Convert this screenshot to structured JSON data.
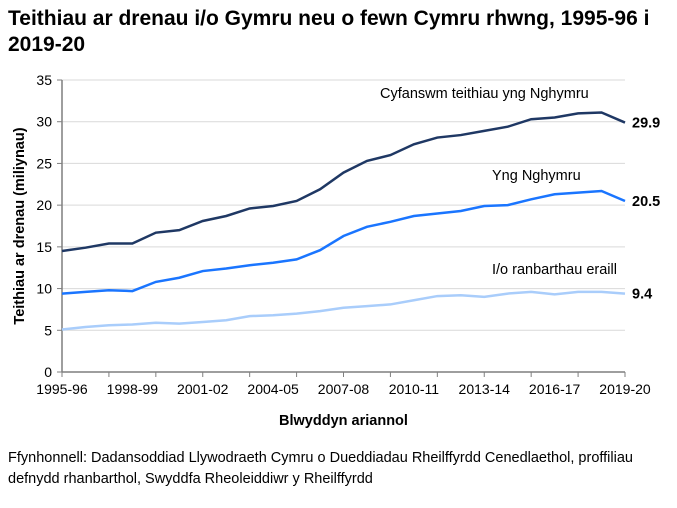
{
  "chart_data": {
    "type": "line",
    "title": "Teithiau ar drenau i/o Gymru neu o fewn Cymru rhwng, 1995-96 i 2019-20",
    "xlabel": "Blwyddyn ariannol",
    "ylabel": "Teithiau ar drenau (miliynau)",
    "ylim": [
      0,
      35
    ],
    "yticks": [
      "0",
      "5",
      "10",
      "15",
      "20",
      "25",
      "30",
      "35"
    ],
    "grid": true,
    "categories": [
      "1995-96",
      "1996-97",
      "1997-98",
      "1998-99",
      "1999-00",
      "2000-01",
      "2001-02",
      "2002-03",
      "2003-04",
      "2004-05",
      "2005-06",
      "2006-07",
      "2007-08",
      "2008-09",
      "2009-10",
      "2010-11",
      "2011-12",
      "2012-13",
      "2013-14",
      "2014-15",
      "2015-16",
      "2016-17",
      "2017-18",
      "2018-19",
      "2019-20"
    ],
    "xtick_labels": [
      "1995-96",
      "1998-99",
      "2001-02",
      "2004-05",
      "2007-08",
      "2010-11",
      "2013-14",
      "2016-17",
      "2019-20"
    ],
    "series": [
      {
        "name": "Cyfanswm teithiau yng Nghymru",
        "color": "#1f3864",
        "end_label": "29.9",
        "values": [
          14.5,
          14.9,
          15.4,
          15.4,
          16.7,
          17.0,
          18.1,
          18.7,
          19.6,
          19.9,
          20.5,
          21.9,
          23.9,
          25.3,
          26.0,
          27.3,
          28.1,
          28.4,
          28.9,
          29.4,
          30.3,
          30.5,
          31.0,
          31.1,
          29.9
        ]
      },
      {
        "name": "Yng Nghymru",
        "color": "#1a75ff",
        "end_label": "20.5",
        "values": [
          9.4,
          9.6,
          9.8,
          9.7,
          10.8,
          11.3,
          12.1,
          12.4,
          12.8,
          13.1,
          13.5,
          14.6,
          16.3,
          17.4,
          18.0,
          18.7,
          19.0,
          19.3,
          19.9,
          20.0,
          20.7,
          21.3,
          21.5,
          21.7,
          20.5
        ]
      },
      {
        "name": "I/o ranbarthau eraill",
        "color": "#a9cdfb",
        "end_label": "9.4",
        "values": [
          5.1,
          5.4,
          5.6,
          5.7,
          5.9,
          5.8,
          6.0,
          6.2,
          6.7,
          6.8,
          7.0,
          7.3,
          7.7,
          7.9,
          8.1,
          8.6,
          9.1,
          9.2,
          9.0,
          9.4,
          9.6,
          9.3,
          9.6,
          9.6,
          9.4
        ]
      }
    ]
  },
  "source": "Ffynhonnell: Dadansoddiad Llywodraeth Cymru o Dueddiadau Rheilffyrdd Cenedlaethol, proffiliau defnydd rhanbarthol, Swyddfa Rheoleiddiwr y Rheilffyrdd"
}
